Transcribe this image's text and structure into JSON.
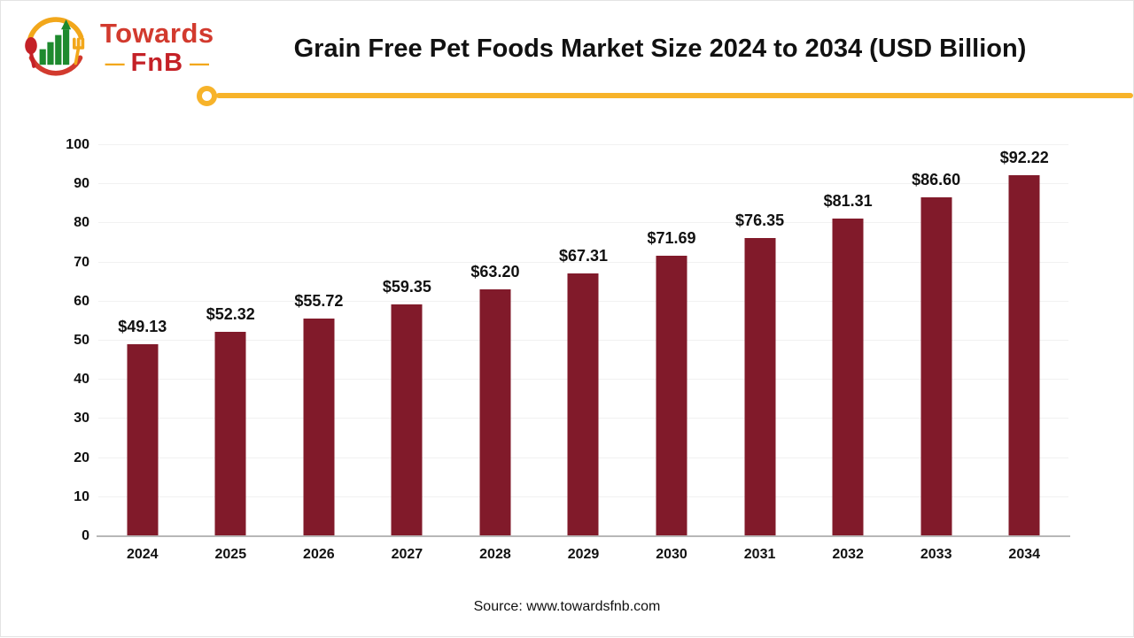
{
  "header": {
    "title": "Grain Free Pet Foods Market Size 2024 to 2034 (USD Billion)",
    "logo": {
      "brand_top": "Towards",
      "brand_bottom": "FnB",
      "dash_left": "—",
      "dash_right": "—"
    }
  },
  "chart_data": {
    "type": "bar",
    "title": "Grain Free Pet Foods Market Size 2024 to 2034 (USD Billion)",
    "categories": [
      "2024",
      "2025",
      "2026",
      "2027",
      "2028",
      "2029",
      "2030",
      "2031",
      "2032",
      "2033",
      "2034"
    ],
    "values": [
      49.13,
      52.32,
      55.72,
      59.35,
      63.2,
      67.31,
      71.69,
      76.35,
      81.31,
      86.6,
      92.22
    ],
    "value_labels": [
      "$49.13",
      "$52.32",
      "$55.72",
      "$59.35",
      "$63.20",
      "$67.31",
      "$71.69",
      "$76.35",
      "$81.31",
      "$86.60",
      "$92.22"
    ],
    "xlabel": "",
    "ylabel": "",
    "ylim": [
      0,
      100
    ],
    "ytick_step": 10,
    "ytick_labels": [
      "0",
      "10",
      "20",
      "30",
      "40",
      "50",
      "60",
      "70",
      "80",
      "90",
      "100"
    ],
    "grid": true,
    "legend": "none",
    "bar_color": "#811a2a"
  },
  "footer": {
    "source": "Source: www.towardsfnb.com"
  },
  "colors": {
    "bar": "#811a2a",
    "accent_yellow": "#f7b32a",
    "brand_red": "#c42127",
    "brand_green": "#1e8a2e",
    "gridline": "#f1f1f1",
    "axis": "#b7b7b7",
    "text": "#111111"
  }
}
